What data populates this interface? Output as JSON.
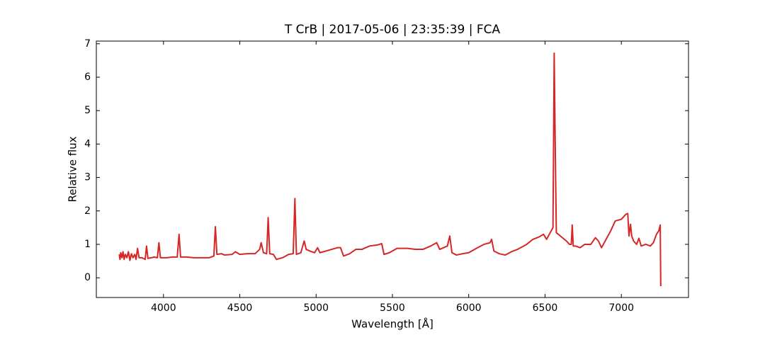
{
  "chart_data": {
    "type": "line",
    "title": "T CrB | 2017-05-06 | 23:35:39 | FCA",
    "xlabel": "Wavelength [Å]",
    "ylabel": "Relative flux",
    "color": "#d62728",
    "xlim": [
      3560,
      7440
    ],
    "ylim": [
      -0.59,
      7.08
    ],
    "xticks": [
      4000,
      4500,
      5000,
      5500,
      6000,
      6500,
      7000
    ],
    "yticks": [
      0,
      1,
      2,
      3,
      4,
      5,
      6,
      7
    ],
    "x": [
      3710,
      3715,
      3720,
      3728,
      3735,
      3742,
      3750,
      3760,
      3770,
      3780,
      3790,
      3800,
      3812,
      3820,
      3830,
      3840,
      3860,
      3880,
      3889,
      3898,
      3920,
      3940,
      3960,
      3970,
      3980,
      4020,
      4060,
      4090,
      4102,
      4112,
      4150,
      4200,
      4250,
      4300,
      4330,
      4340,
      4350,
      4380,
      4400,
      4450,
      4471,
      4500,
      4550,
      4600,
      4630,
      4640,
      4655,
      4676,
      4686,
      4696,
      4720,
      4740,
      4780,
      4820,
      4850,
      4861,
      4871,
      4900,
      4922,
      4935,
      4960,
      4990,
      5010,
      5025,
      5080,
      5140,
      5160,
      5180,
      5220,
      5260,
      5300,
      5350,
      5400,
      5430,
      5445,
      5480,
      5530,
      5600,
      5650,
      5700,
      5750,
      5790,
      5810,
      5860,
      5876,
      5890,
      5920,
      5960,
      6000,
      6050,
      6100,
      6140,
      6150,
      6165,
      6200,
      6240,
      6280,
      6320,
      6380,
      6420,
      6460,
      6490,
      6510,
      6540,
      6552,
      6560,
      6568,
      6574,
      6600,
      6640,
      6660,
      6672,
      6678,
      6685,
      6700,
      6730,
      6760,
      6800,
      6830,
      6850,
      6870,
      6900,
      6930,
      6960,
      7000,
      7030,
      7042,
      7050,
      7060,
      7068,
      7080,
      7100,
      7115,
      7130,
      7160,
      7190,
      7210,
      7230,
      7245,
      7255,
      7258
    ],
    "values": [
      0.7,
      0.55,
      0.75,
      0.6,
      0.78,
      0.55,
      0.7,
      0.6,
      0.78,
      0.52,
      0.72,
      0.6,
      0.7,
      0.55,
      0.88,
      0.6,
      0.6,
      0.55,
      0.95,
      0.58,
      0.6,
      0.62,
      0.6,
      1.05,
      0.6,
      0.6,
      0.62,
      0.62,
      1.3,
      0.62,
      0.62,
      0.6,
      0.6,
      0.6,
      0.65,
      1.53,
      0.7,
      0.72,
      0.68,
      0.7,
      0.78,
      0.7,
      0.72,
      0.72,
      0.85,
      1.05,
      0.75,
      0.72,
      1.8,
      0.72,
      0.7,
      0.55,
      0.6,
      0.7,
      0.72,
      2.37,
      0.7,
      0.75,
      1.1,
      0.85,
      0.8,
      0.75,
      0.9,
      0.75,
      0.82,
      0.9,
      0.9,
      0.65,
      0.72,
      0.85,
      0.85,
      0.95,
      0.98,
      1.02,
      0.7,
      0.75,
      0.88,
      0.88,
      0.85,
      0.85,
      0.95,
      1.05,
      0.85,
      0.95,
      1.25,
      0.75,
      0.68,
      0.72,
      0.75,
      0.88,
      1.0,
      1.05,
      1.15,
      0.8,
      0.72,
      0.68,
      0.78,
      0.85,
      1.0,
      1.15,
      1.22,
      1.3,
      1.15,
      1.4,
      1.5,
      6.72,
      3.5,
      1.35,
      1.25,
      1.1,
      1.0,
      1.0,
      1.58,
      0.95,
      0.95,
      0.9,
      1.0,
      1.0,
      1.2,
      1.1,
      0.9,
      1.15,
      1.4,
      1.7,
      1.75,
      1.9,
      1.92,
      1.25,
      1.6,
      1.25,
      1.1,
      1.0,
      1.18,
      0.95,
      1.0,
      0.95,
      1.05,
      1.3,
      1.4,
      1.58,
      -0.25
    ]
  }
}
